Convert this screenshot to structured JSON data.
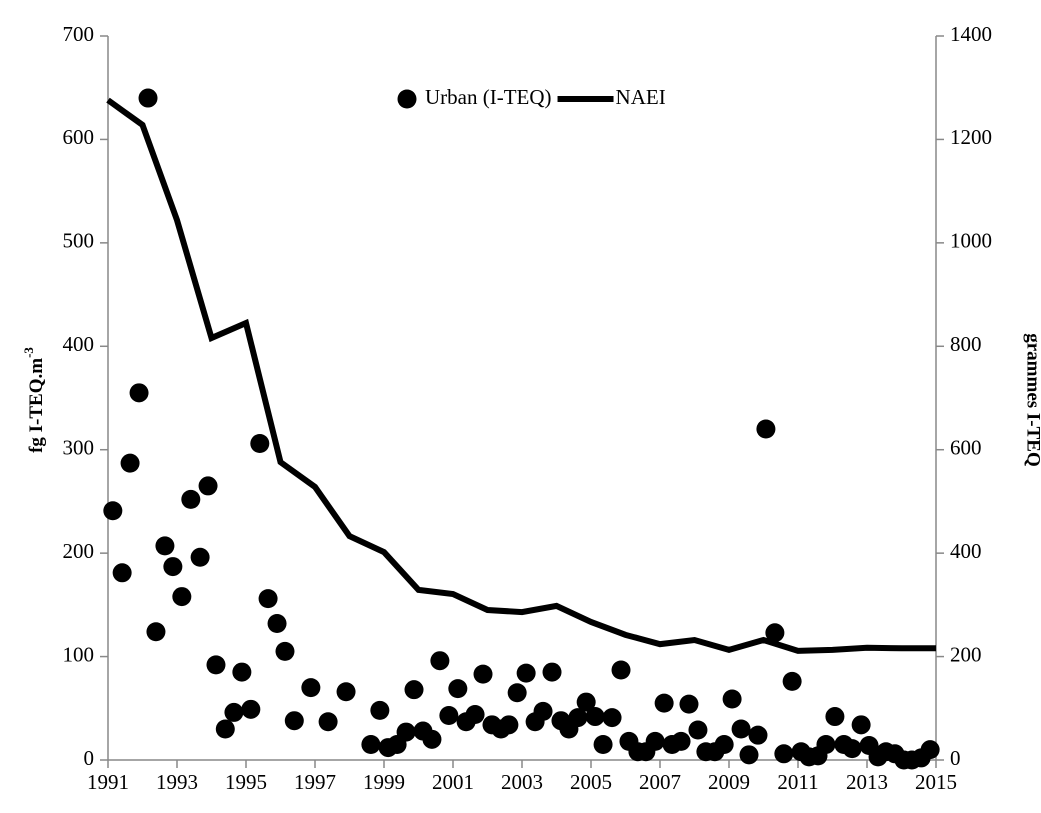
{
  "chart_data": {
    "type": "combo",
    "y_label": "fg I-TEQ.m",
    "y_label_superscript": "-3",
    "y2_label": "grammes I-TEQ",
    "xlim": [
      1991,
      2015
    ],
    "xticks": [
      1991,
      1993,
      1995,
      1997,
      1999,
      2001,
      2003,
      2005,
      2007,
      2009,
      2011,
      2013,
      2015
    ],
    "ylim": [
      0,
      700
    ],
    "yticks": [
      0,
      100,
      200,
      300,
      400,
      500,
      600,
      700
    ],
    "y2lim": [
      0,
      1400
    ],
    "y2ticks": [
      0,
      200,
      400,
      600,
      800,
      1000,
      1200,
      1400
    ],
    "legend": "upper center",
    "series": [
      {
        "name": "Urban (I-TEQ)",
        "type": "scatter",
        "color": "#000000",
        "x": [
          1991.14,
          1991.41,
          1991.64,
          1991.9,
          1992.16,
          1992.39,
          1992.65,
          1992.88,
          1993.14,
          1993.4,
          1993.67,
          1993.9,
          1994.13,
          1994.4,
          1994.65,
          1994.88,
          1995.14,
          1995.4,
          1995.64,
          1995.9,
          1996.13,
          1996.4,
          1996.88,
          1997.38,
          1997.9,
          1998.62,
          1998.88,
          1999.12,
          1999.38,
          1999.64,
          1999.87,
          2000.13,
          2000.39,
          2000.62,
          2000.88,
          2001.14,
          2001.38,
          2001.64,
          2001.87,
          2002.13,
          2002.39,
          2002.62,
          2002.86,
          2003.12,
          2003.38,
          2003.61,
          2003.87,
          2004.13,
          2004.36,
          2004.62,
          2004.86,
          2005.12,
          2005.35,
          2005.61,
          2005.87,
          2006.1,
          2006.36,
          2006.59,
          2006.86,
          2007.12,
          2007.35,
          2007.61,
          2007.84,
          2008.1,
          2008.33,
          2008.59,
          2008.86,
          2009.09,
          2009.35,
          2009.58,
          2009.84,
          2010.07,
          2010.33,
          2010.59,
          2010.83,
          2011.09,
          2011.32,
          2011.58,
          2011.81,
          2012.07,
          2012.33,
          2012.57,
          2012.83,
          2013.06,
          2013.32,
          2013.55,
          2013.81,
          2014.07,
          2014.3,
          2014.57,
          2014.83
        ],
        "values": [
          241,
          181,
          287,
          355,
          640,
          124,
          207,
          187,
          158,
          252,
          196,
          265,
          92,
          30,
          46,
          85,
          49,
          306,
          156,
          132,
          105,
          38,
          70,
          37,
          66,
          15,
          48,
          12,
          15,
          27,
          68,
          28,
          20,
          96,
          43,
          69,
          37,
          44,
          83,
          34,
          30,
          34,
          65,
          84,
          37,
          47,
          85,
          38,
          30,
          41,
          56,
          42,
          15,
          41,
          87,
          18,
          8,
          8,
          18,
          55,
          15,
          18,
          54,
          29,
          8,
          8,
          15,
          59,
          30,
          5,
          24,
          320,
          123,
          6,
          76,
          8,
          3,
          4,
          15,
          42,
          15,
          11,
          34,
          14,
          3,
          8,
          6,
          0,
          0,
          2,
          10
        ]
      },
      {
        "name": "NAEI",
        "type": "line",
        "axis": "y2",
        "color": "#000000",
        "x": [
          1991,
          1992,
          1993,
          1994,
          1995,
          1996,
          1997,
          1998,
          1999,
          2000,
          2001,
          2002,
          2003,
          2004,
          2005,
          2006,
          2007,
          2008,
          2009,
          2010,
          2011,
          2012,
          2013,
          2014,
          2015
        ],
        "values": [
          1276,
          1228,
          1044,
          816,
          845,
          576,
          528,
          433,
          402,
          329,
          321,
          290,
          286,
          298,
          267,
          242,
          224,
          232,
          213,
          232,
          211,
          213,
          217,
          216,
          216
        ]
      }
    ]
  }
}
